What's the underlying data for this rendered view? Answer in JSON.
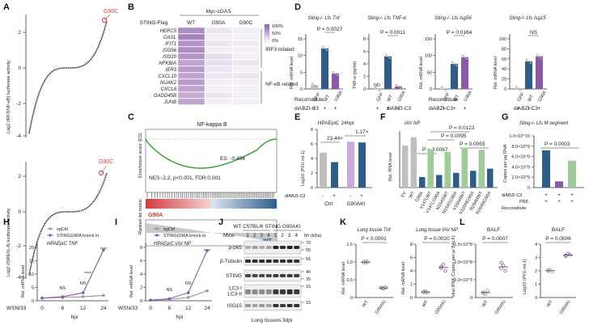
{
  "panels": [
    "A",
    "B",
    "C",
    "D",
    "E",
    "F",
    "G",
    "H",
    "I",
    "J",
    "K",
    "L"
  ],
  "A": {
    "top_ylabel": "Log2 (IRF3/NF-κB) luciferase activity",
    "bottom_ylabel": "Log2 (ISRE/IL-8) luciferase activity",
    "callout": "G90C",
    "top_ticks": [
      "2",
      "0",
      "-2",
      "-4"
    ],
    "bottom_ticks": [
      "2",
      "0",
      "-2",
      "-4"
    ]
  },
  "B": {
    "myc": "Myc-cGAS",
    "sting": "STING-Flag",
    "columns": [
      "WT",
      "G90A",
      "G90C"
    ],
    "genes": [
      "HERC5",
      "OASL",
      "IFIT1",
      "ISG56",
      "ISG20",
      "NFKBIA",
      "IER3",
      "CXCL10",
      "NUAK2",
      "CXCL8",
      "GADD45B",
      "JUNB"
    ],
    "legend": [
      "100%",
      "50%",
      "0%"
    ],
    "groups": [
      "IRF3 related",
      "NF-κB related"
    ]
  },
  "C": {
    "title": "NF-kappa B",
    "es": "ES: -0.484",
    "nes": "NES:-2.2, p<0.001, FDR:0.001",
    "left": "G90A",
    "right": "WT",
    "yaxis1": "Enrichment score (ES)",
    "yaxis2": "Ranked list metric"
  },
  "D": {
    "titles": [
      "Sting-/- Lfs Tnf",
      "Sting-/- Lfs TNF-α",
      "Sting-/- Lfs Isg56",
      "Sting-/- Lfs Isg15"
    ],
    "ylabels": [
      "Rel. mRNA level",
      "TNF-α (pg/ml)",
      "Rel. mRNA level",
      "Rel. mRNA level"
    ],
    "pvalues": [
      "P = 0.0027",
      "P = 0.0011",
      "P = 0.0164",
      "NS"
    ],
    "nd": "ND",
    "xcats": [
      "GFP",
      "WT",
      "G90A"
    ],
    "reconstitute": "Reconstitute",
    "diabzi": "diABZI-C3",
    "signs": [
      "+",
      "+",
      "+"
    ]
  },
  "E": {
    "title": "HPAEpiC 24hpi",
    "fold1": "23.44×",
    "fold2": "1.17×",
    "ylabel": "Log10 (PFU ml-1)",
    "diabzi": "diABZI-C3",
    "signs": [
      "-",
      "+",
      "-",
      "+"
    ],
    "groups": [
      "Ctrl",
      "G90AKI"
    ],
    "ticks": [
      "8",
      "6",
      "4",
      "2",
      "0"
    ]
  },
  "F": {
    "title": "IAV NP",
    "ylabel": "Rel. RNA level",
    "pvalues": [
      "P = 0.0123",
      "P = 0.0095",
      "P = 0.0055",
      "P = 0.0067"
    ],
    "xcats": [
      "EV",
      "WT",
      "G90A",
      "V147LWT",
      "V147LG90A",
      "N154SWT",
      "N154SG90A",
      "V155MWT",
      "V155MG90A",
      "R284MWT",
      "R284MG90A"
    ]
  },
  "G": {
    "title": "Sting-/- Lfs M segment",
    "ylabel": "Copies per μg RNA",
    "pvalue": "P = 0.0003",
    "ticks": [
      "1.0×10^10",
      "8.0×10^9",
      "6.0×10^9",
      "4.0×10^9",
      "2.0×10^9",
      "0"
    ],
    "diabzi": "diABZI-C3",
    "pr8": "PR8",
    "reconstitute": "Reconstitute",
    "xcats": [
      "GFP",
      "WT",
      "G90A"
    ]
  },
  "H": {
    "title": "HPAEpiC TNF",
    "legend": [
      "sgCtrl",
      "STINGG90A knock in"
    ],
    "ylabel": "Rel. mRNA level",
    "xlabel": "hpi",
    "wsn": "WSN/33",
    "xticks": [
      "0",
      "6",
      "12",
      "24"
    ],
    "yticks": [
      "20",
      "15",
      "10",
      "5",
      "0"
    ],
    "marks": [
      "NS",
      "NS",
      "****",
      "****"
    ],
    "chart_data": {
      "type": "line",
      "x": [
        0,
        6,
        12,
        24
      ],
      "series": [
        {
          "name": "sgCtrl",
          "values": [
            1,
            1.2,
            1.5,
            2
          ]
        },
        {
          "name": "STINGG90A knock in",
          "values": [
            1,
            1.5,
            3,
            19
          ]
        }
      ],
      "ylim": [
        0,
        20
      ]
    }
  },
  "I": {
    "title": "HPAEpiC IAV NP",
    "legend": [
      "sgCtrl",
      "STINGG90A knock in"
    ],
    "ylabel": "Rel. mRNA level",
    "xlabel": "hpi",
    "wsn": "WSN/33",
    "xticks": [
      "0",
      "6",
      "12",
      "24"
    ],
    "yticks": [
      "8",
      "6",
      "4",
      "2",
      "0"
    ],
    "marks": [
      "NS",
      "NS",
      "****"
    ],
    "chart_data": {
      "type": "line",
      "x": [
        0,
        6,
        12,
        24
      ],
      "series": [
        {
          "name": "sgCtrl",
          "values": [
            0.1,
            0.2,
            0.5,
            1.5
          ]
        },
        {
          "name": "STINGG90A knock in",
          "values": [
            0.1,
            0.3,
            1.2,
            7.5
          ]
        }
      ],
      "ylim": [
        0,
        8
      ]
    }
  },
  "J": {
    "title": "WT C57BL/6 STING G90AKI",
    "mice": "Mice",
    "lanes": [
      "1",
      "2",
      "3",
      "4",
      "1",
      "2",
      "3",
      "4"
    ],
    "mr": "Mr (kDa)",
    "rows": [
      {
        "label": "p-p65",
        "marks": [
          "70",
          "55"
        ]
      },
      {
        "label": "β-Tubulin",
        "marks": [
          "55"
        ]
      },
      {
        "label": "STING",
        "marks": [
          "40",
          "35"
        ]
      },
      {
        "label": "LC3-I/LC3-II",
        "marks": [
          "15"
        ]
      },
      {
        "label": "ISG15",
        "marks": [
          "15"
        ]
      }
    ],
    "caption": "Lung tissues 3dpi"
  },
  "K": {
    "titles": [
      "Lung tissue Tnf",
      "Lung tissue IAV NP"
    ],
    "pvalues": [
      "P < 0.0001",
      "P = 0.0020"
    ],
    "ylabel": "Rel. mRNA level",
    "xcats": [
      "WT",
      "G90AKI"
    ],
    "ticks1": [
      "1.5",
      "1.0",
      "0.5",
      "0"
    ],
    "ticks2": [
      "8",
      "6",
      "4",
      "2",
      "0"
    ]
  },
  "L": {
    "titles": [
      "BALF",
      "BALF"
    ],
    "pvalues": [
      "P = 0.0007",
      "P = 0.0006"
    ],
    "ylabel1": "Viral RNA (Copies per μl BALF)",
    "ylabel2": "Log10 (PFU ml-1)",
    "ticks1": [
      "1.5×10^8",
      "1.0×10^8",
      "5.0×10^7",
      "0"
    ],
    "ticks2": [
      "4",
      "3",
      "2",
      "1",
      "0"
    ],
    "xcats": [
      "WT",
      "G90AKI"
    ]
  },
  "colors": {
    "purple": "#8a5aa8",
    "lightpurple": "#c9a9dc",
    "green": "#9fcd9a",
    "blue": "#2f5d8a",
    "gray": "#bfbfbf",
    "red": "#d23c3c"
  }
}
